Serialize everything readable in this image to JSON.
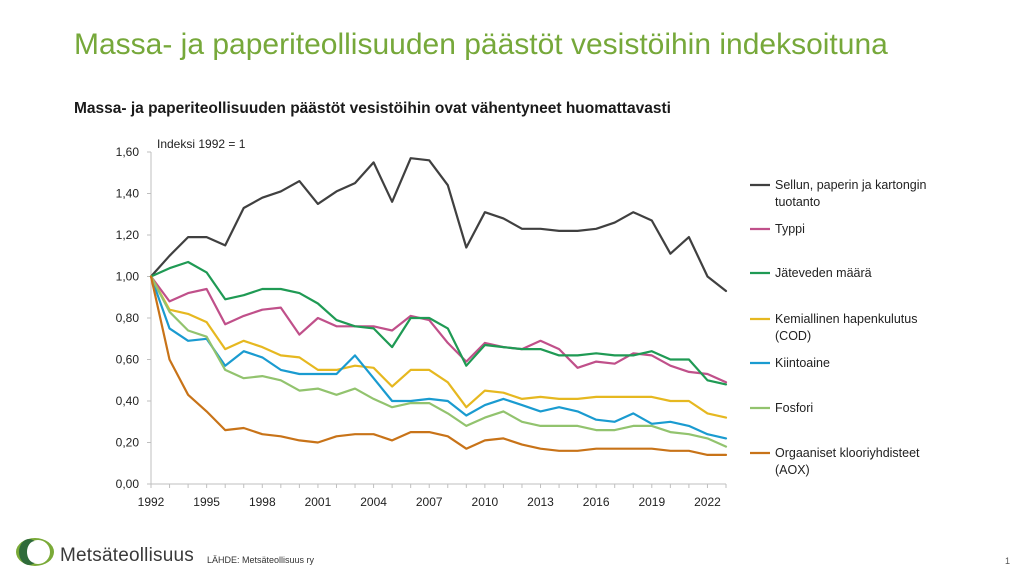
{
  "slide": {
    "title": "Massa- ja paperiteollisuuden päästöt vesistöihin indeksoituna",
    "page_number": "1"
  },
  "footer": {
    "brand": "Metsäteollisuus",
    "source": "LÄHDE:  Metsäteollisuus ry"
  },
  "chart_data": {
    "type": "line",
    "title": "Massa- ja paperiteollisuuden päästöt vesistöihin ovat vähentyneet huomattavasti",
    "annotation": "Indeksi 1992 = 1",
    "xlabel": "",
    "ylabel": "",
    "ylim": [
      0,
      1.6
    ],
    "xlim": [
      1992,
      2023
    ],
    "grid": false,
    "legend_position": "right",
    "x_tick_labels": [
      "1992",
      "1995",
      "1998",
      "2001",
      "2004",
      "2007",
      "2010",
      "2013",
      "2016",
      "2019",
      "2022"
    ],
    "y_tick_labels": [
      "0,00",
      "0,20",
      "0,40",
      "0,60",
      "0,80",
      "1,00",
      "1,20",
      "1,40",
      "1,60"
    ],
    "x": [
      1992,
      1993,
      1994,
      1995,
      1996,
      1997,
      1998,
      1999,
      2000,
      2001,
      2002,
      2003,
      2004,
      2005,
      2006,
      2007,
      2008,
      2009,
      2010,
      2011,
      2012,
      2013,
      2014,
      2015,
      2016,
      2017,
      2018,
      2019,
      2020,
      2021,
      2022,
      2023
    ],
    "series": [
      {
        "name": "Sellun, paperin ja kartongin tuotanto",
        "legend_lines": [
          "Sellun, paperin ja kartongin",
          "tuotanto"
        ],
        "color": "#404040",
        "values": [
          1.0,
          1.1,
          1.19,
          1.19,
          1.15,
          1.33,
          1.38,
          1.41,
          1.46,
          1.35,
          1.41,
          1.45,
          1.55,
          1.36,
          1.57,
          1.56,
          1.44,
          1.14,
          1.31,
          1.28,
          1.23,
          1.23,
          1.22,
          1.22,
          1.23,
          1.26,
          1.31,
          1.27,
          1.11,
          1.19,
          1.0,
          0.93
        ]
      },
      {
        "name": "Typpi",
        "legend_lines": [
          "Typpi"
        ],
        "color": "#c0508a",
        "values": [
          1.0,
          0.88,
          0.92,
          0.94,
          0.77,
          0.81,
          0.84,
          0.85,
          0.72,
          0.8,
          0.76,
          0.76,
          0.76,
          0.74,
          0.81,
          0.79,
          0.68,
          0.59,
          0.68,
          0.66,
          0.65,
          0.69,
          0.65,
          0.56,
          0.59,
          0.58,
          0.63,
          0.62,
          0.57,
          0.54,
          0.53,
          0.49
        ]
      },
      {
        "name": "Jäteveden määrä",
        "legend_lines": [
          "Jäteveden määrä"
        ],
        "color": "#1f9a54",
        "values": [
          1.0,
          1.04,
          1.07,
          1.02,
          0.89,
          0.91,
          0.94,
          0.94,
          0.92,
          0.87,
          0.79,
          0.76,
          0.75,
          0.66,
          0.8,
          0.8,
          0.75,
          0.57,
          0.67,
          0.66,
          0.65,
          0.65,
          0.62,
          0.62,
          0.63,
          0.62,
          0.62,
          0.64,
          0.6,
          0.6,
          0.5,
          0.48
        ]
      },
      {
        "name": "Kemiallinen hapenkulutus (COD)",
        "legend_lines": [
          "Kemiallinen hapenkulutus",
          "(COD)"
        ],
        "color": "#e6b820",
        "values": [
          1.0,
          0.84,
          0.82,
          0.78,
          0.65,
          0.69,
          0.66,
          0.62,
          0.61,
          0.55,
          0.55,
          0.57,
          0.56,
          0.47,
          0.55,
          0.55,
          0.49,
          0.37,
          0.45,
          0.44,
          0.41,
          0.42,
          0.41,
          0.41,
          0.42,
          0.42,
          0.42,
          0.42,
          0.4,
          0.4,
          0.34,
          0.32
        ]
      },
      {
        "name": "Kiintoaine",
        "legend_lines": [
          "Kiintoaine"
        ],
        "color": "#1a9bd0",
        "values": [
          1.0,
          0.75,
          0.69,
          0.7,
          0.57,
          0.64,
          0.61,
          0.55,
          0.53,
          0.53,
          0.53,
          0.62,
          0.51,
          0.4,
          0.4,
          0.41,
          0.4,
          0.33,
          0.38,
          0.41,
          0.38,
          0.35,
          0.37,
          0.35,
          0.31,
          0.3,
          0.34,
          0.29,
          0.3,
          0.28,
          0.24,
          0.22
        ]
      },
      {
        "name": "Fosfori",
        "legend_lines": [
          "Fosfori"
        ],
        "color": "#92c36e",
        "values": [
          1.0,
          0.83,
          0.74,
          0.71,
          0.55,
          0.51,
          0.52,
          0.5,
          0.45,
          0.46,
          0.43,
          0.46,
          0.41,
          0.37,
          0.39,
          0.39,
          0.34,
          0.28,
          0.32,
          0.35,
          0.3,
          0.28,
          0.28,
          0.28,
          0.26,
          0.26,
          0.28,
          0.28,
          0.25,
          0.24,
          0.22,
          0.18
        ]
      },
      {
        "name": "Orgaaniset klooriyhdisteet (AOX)",
        "legend_lines": [
          "Orgaaniset klooriyhdisteet",
          "(AOX)"
        ],
        "color": "#c87318",
        "values": [
          1.0,
          0.6,
          0.43,
          0.35,
          0.26,
          0.27,
          0.24,
          0.23,
          0.21,
          0.2,
          0.23,
          0.24,
          0.24,
          0.21,
          0.25,
          0.25,
          0.23,
          0.17,
          0.21,
          0.22,
          0.19,
          0.17,
          0.16,
          0.16,
          0.17,
          0.17,
          0.17,
          0.17,
          0.16,
          0.16,
          0.14,
          0.14
        ]
      }
    ]
  }
}
